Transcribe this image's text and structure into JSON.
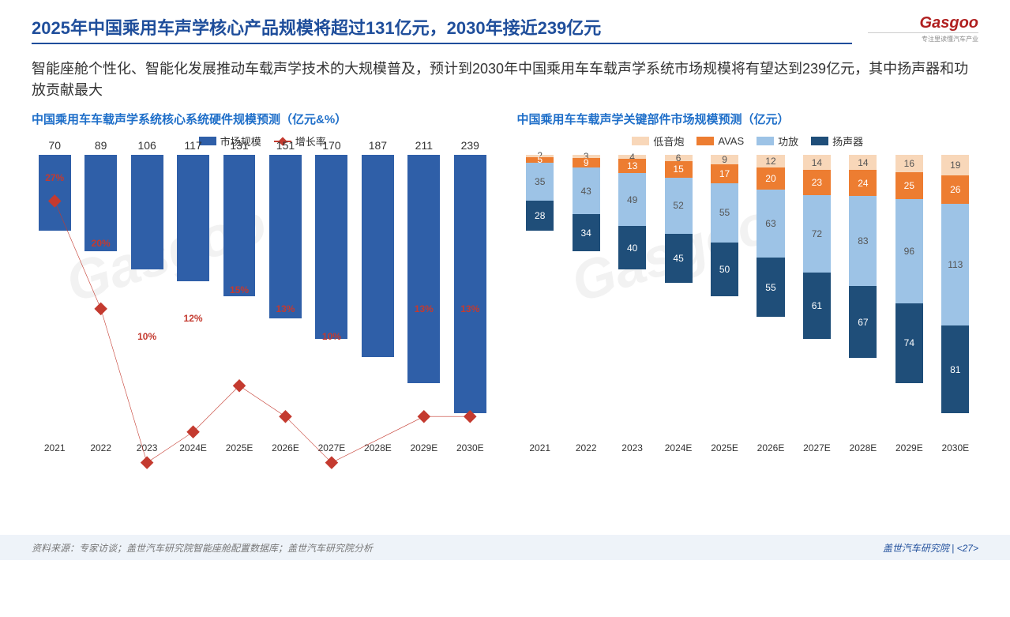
{
  "header": {
    "title": "2025年中国乘用车声学核心产品规模将超过131亿元，2030年接近239亿元",
    "logo_main": "Gasgoo",
    "logo_sub": "专注里读懂汽车产业"
  },
  "subtitle": "智能座舱个性化、智能化发展推动车载声学技术的大规模普及，预计到2030年中国乘用车车载声学系统市场规模将有望达到239亿元，其中扬声器和功放贡献最大",
  "watermark_text": "Gasgoo",
  "left_chart": {
    "title": "中国乘用车车载声学系统核心系统硬件规模预测（亿元&%）",
    "type": "bar+line",
    "legend_bar": "市场规模",
    "legend_line": "增长率",
    "bar_color": "#2f5fa8",
    "line_color": "#c43a2f",
    "categories": [
      "2021",
      "2022",
      "2023",
      "2024E",
      "2025E",
      "2026E",
      "2027E",
      "2028E",
      "2029E",
      "2030E"
    ],
    "bar_values": [
      70,
      89,
      106,
      117,
      131,
      151,
      170,
      187,
      211,
      239
    ],
    "bar_ymax": 260,
    "line_values_pct": [
      27,
      20,
      10,
      12,
      15,
      13,
      10,
      13,
      13
    ],
    "line_labels": [
      "27%",
      "20%",
      "10%",
      "12%",
      "15%",
      "13%",
      "10%",
      "13%",
      "13%"
    ],
    "line_offset_index": 1,
    "line_ymax": 30,
    "label_fontsize": 14,
    "background_color": "#ffffff"
  },
  "right_chart": {
    "title": "中国乘用车车载声学关键部件市场规模预测（亿元）",
    "type": "stacked-bar",
    "categories": [
      "2021",
      "2022",
      "2023",
      "2024E",
      "2025E",
      "2026E",
      "2027E",
      "2028E",
      "2029E",
      "2030E"
    ],
    "series": [
      {
        "name": "扬声器",
        "color": "#1f4e79",
        "values": [
          28,
          34,
          40,
          45,
          50,
          55,
          61,
          67,
          74,
          81
        ]
      },
      {
        "name": "功放",
        "color": "#9dc3e6",
        "values": [
          35,
          43,
          49,
          52,
          55,
          63,
          72,
          83,
          96,
          113
        ],
        "light_text": true
      },
      {
        "name": "AVAS",
        "color": "#ed7d31",
        "values": [
          5,
          9,
          13,
          15,
          17,
          20,
          23,
          24,
          25,
          26
        ]
      },
      {
        "name": "低音炮",
        "color": "#f8d7b9",
        "values": [
          2,
          3,
          4,
          6,
          9,
          12,
          14,
          14,
          16,
          19
        ],
        "light_text": true
      }
    ],
    "ymax": 260,
    "legend_order": [
      "低音炮",
      "AVAS",
      "功放",
      "扬声器"
    ],
    "background_color": "#ffffff"
  },
  "footer": {
    "left": "资料来源：专家访谈；盖世汽车研究院智能座舱配置数据库；盖世汽车研究院分析",
    "right_prefix": "盖世汽车研究院 | ",
    "page": "<27>"
  }
}
